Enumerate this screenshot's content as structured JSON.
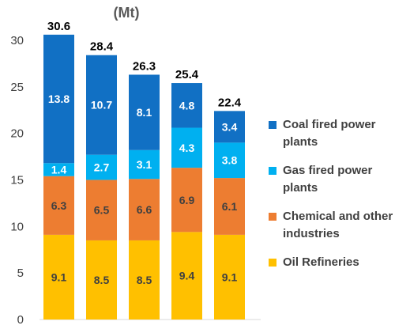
{
  "title_fragment": "(Mt)",
  "chart_data": {
    "type": "bar",
    "stacked": true,
    "title": "(Mt)",
    "categories": [
      "",
      "",
      "",
      "",
      ""
    ],
    "totals": [
      30.6,
      28.4,
      26.3,
      25.4,
      22.4
    ],
    "series": [
      {
        "name": "Oil Refineries",
        "color": "#FFC000",
        "label_color": "#404040",
        "values": [
          9.1,
          8.5,
          8.5,
          9.4,
          9.1
        ]
      },
      {
        "name": "Chemical and other industries",
        "color": "#ED7D31",
        "label_color": "#404040",
        "values": [
          6.3,
          6.5,
          6.6,
          6.9,
          6.1
        ]
      },
      {
        "name": "Gas fired power plants",
        "color": "#00B0F0",
        "label_color": "#FFFFFF",
        "values": [
          1.4,
          2.7,
          3.1,
          4.3,
          3.8
        ]
      },
      {
        "name": "Coal fired power plants",
        "color": "#1170C4",
        "label_color": "#FFFFFF",
        "values": [
          13.8,
          10.7,
          8.1,
          4.8,
          3.4
        ]
      }
    ],
    "yticks": [
      0,
      5,
      10,
      15,
      20,
      25,
      30
    ],
    "ylim": [
      0,
      32
    ],
    "grid": false,
    "legend_position": "right"
  }
}
